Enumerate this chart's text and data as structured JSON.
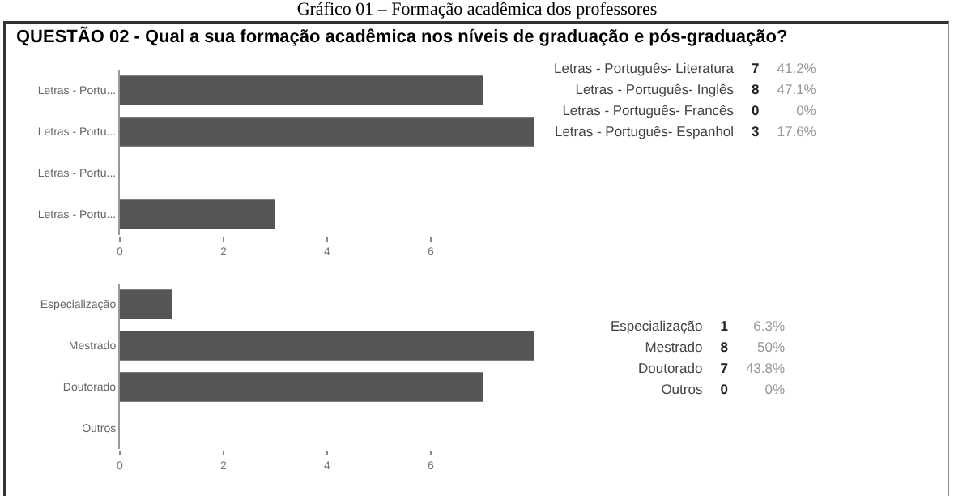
{
  "chart_data": [
    {
      "type": "bar",
      "orientation": "horizontal",
      "title": "Gráfico 01 – Formação acadêmica dos professores",
      "subtitle": "QUESTÃO 02 - Qual a sua formação acadêmica nos níveis de graduação e pós-graduação?",
      "categories": [
        "Letras - Portu...",
        "Letras - Portu...",
        "Letras - Portu...",
        "Letras - Portu..."
      ],
      "values": [
        7,
        8,
        0,
        3
      ],
      "color": "#555555",
      "xlim": [
        0,
        8
      ],
      "xticks": [
        0,
        2,
        4,
        6
      ],
      "grid": false,
      "legend": false
    },
    {
      "type": "other",
      "categories": [
        "Letras - Português- Literatura",
        "Letras - Português- Inglês",
        "Letras - Português- Francês",
        "Letras - Português- Espanhol"
      ],
      "series": [
        {
          "color": "#222222",
          "values": [
            7,
            8,
            0,
            3
          ]
        },
        {
          "color": "#999999",
          "values": [
            41.2,
            47.1,
            0,
            17.6
          ],
          "value_labels": [
            "41.2%",
            "47.1%",
            "0%",
            "17.6%"
          ]
        }
      ],
      "data_labels": true
    },
    {
      "type": "bar",
      "orientation": "horizontal",
      "categories": [
        "Especialização",
        "Mestrado",
        "Doutorado",
        "Outros"
      ],
      "values": [
        1,
        8,
        7,
        0
      ],
      "color": "#555555",
      "xlim": [
        0,
        8
      ],
      "xticks": [
        0,
        2,
        4,
        6
      ],
      "grid": false,
      "legend": false
    },
    {
      "type": "other",
      "categories": [
        "Especialização",
        "Mestrado",
        "Doutorado",
        "Outros"
      ],
      "series": [
        {
          "color": "#222222",
          "values": [
            1,
            8,
            7,
            0
          ]
        },
        {
          "color": "#999999",
          "values": [
            6.3,
            50,
            43.8,
            0
          ],
          "value_labels": [
            "6.3%",
            "50%",
            "43.8%",
            "0%"
          ]
        }
      ],
      "data_labels": true
    }
  ]
}
